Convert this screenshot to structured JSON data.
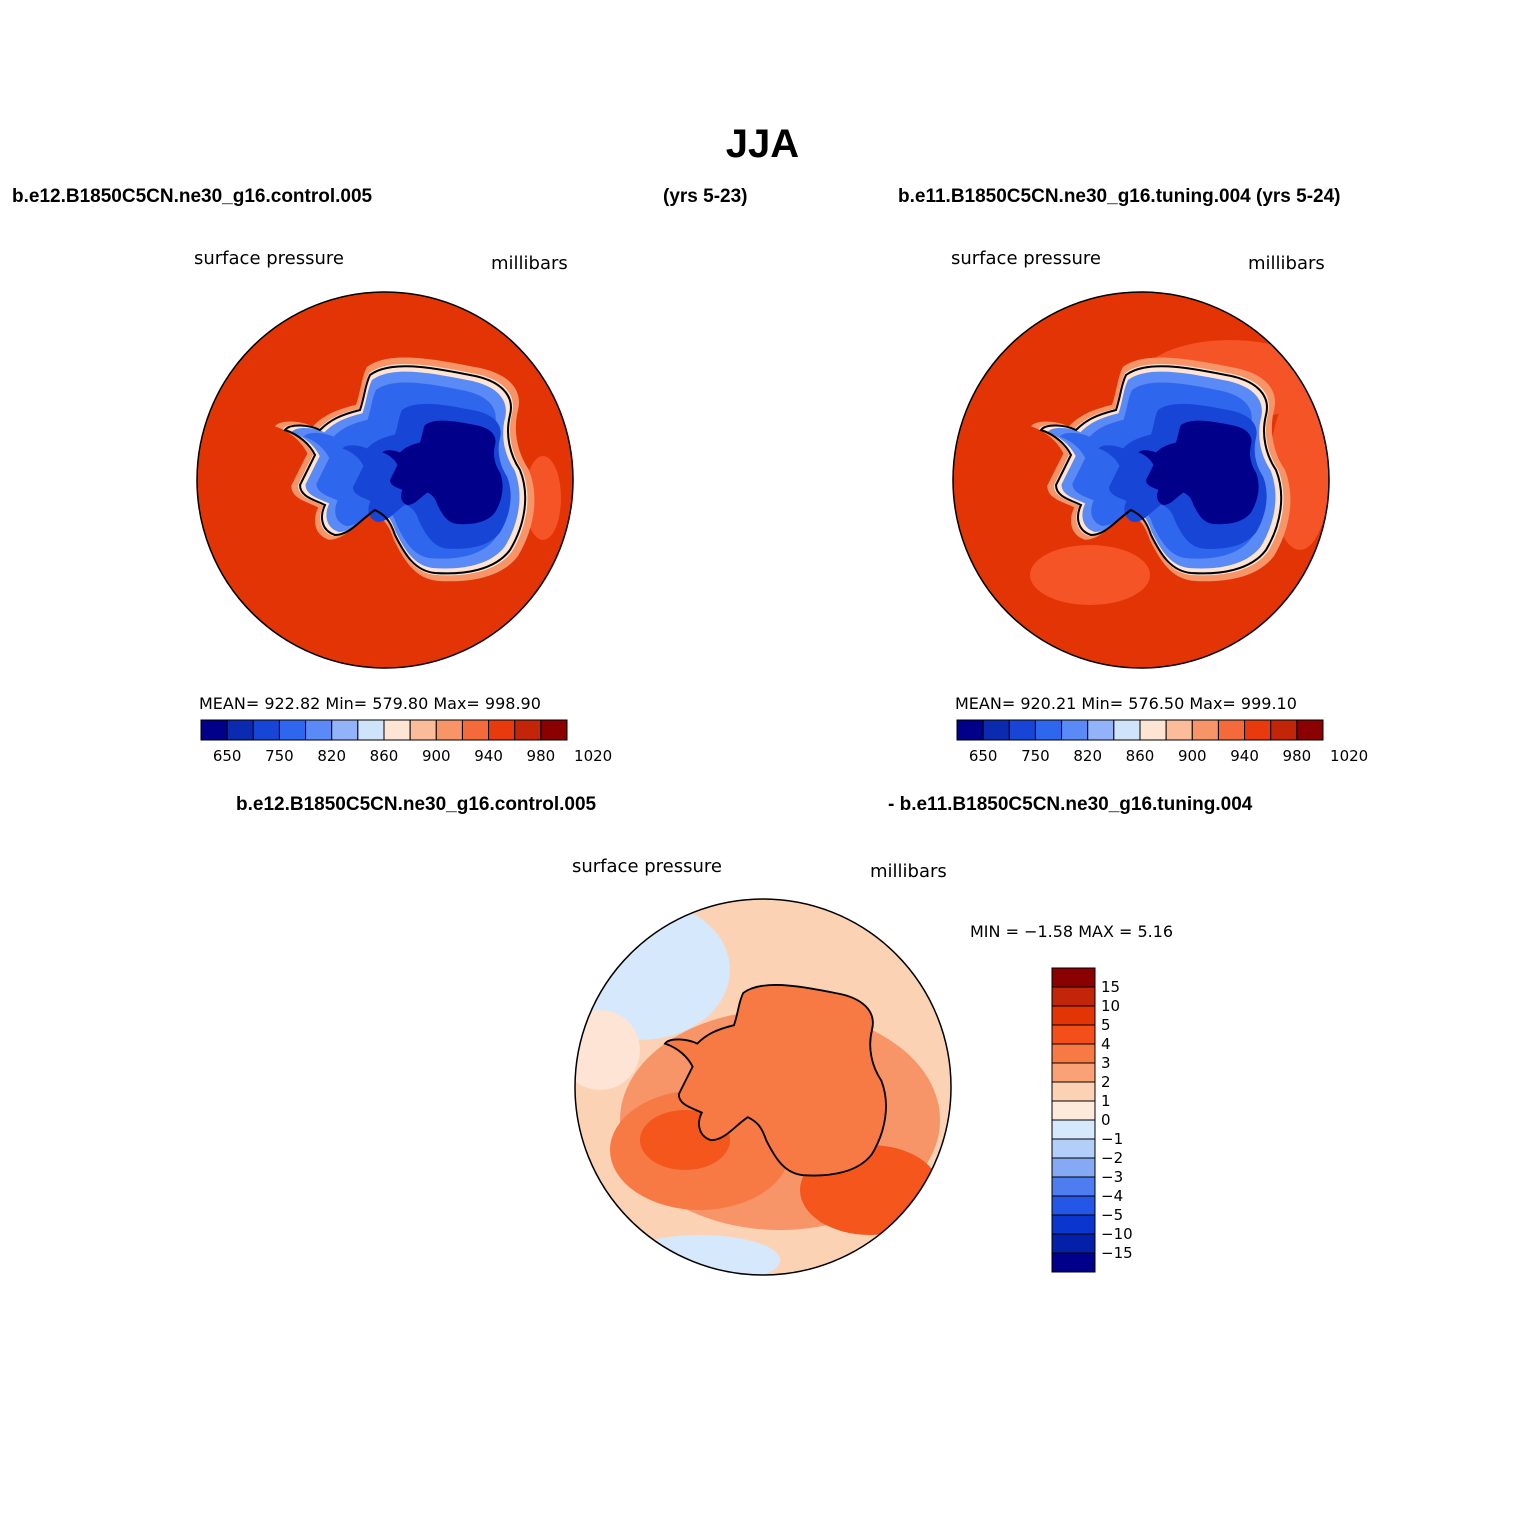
{
  "figure": {
    "title": "JJA",
    "case1": "b.e12.B1850C5CN.ne30_g16.control.005",
    "case1_years": "(yrs 5-23)",
    "case2": "b.e11.B1850C5CN.ne30_g16.tuning.004 (yrs 5-24)",
    "diff_case1": "b.e12.B1850C5CN.ne30_g16.control.005",
    "diff_case2": "- b.e11.B1850C5CN.ne30_g16.tuning.004"
  },
  "panels": [
    {
      "variable": "surface pressure",
      "units": "millibars",
      "stats": "MEAN= 922.82   Min= 579.80   Max= 998.90",
      "mean": 922.82,
      "min": 579.8,
      "max": 998.9
    },
    {
      "variable": "surface pressure",
      "units": "millibars",
      "stats": "MEAN= 920.21   Min= 576.50   Max= 999.10",
      "mean": 920.21,
      "min": 576.5,
      "max": 999.1
    }
  ],
  "diff_panel": {
    "variable": "surface pressure",
    "units": "millibars",
    "stats": "MIN =   −1.58  MAX =    5.16",
    "min": -1.58,
    "max": 5.16
  },
  "colorbar_abs": {
    "colors": [
      "#00008b",
      "#0a2ab0",
      "#1745d6",
      "#2f66ee",
      "#5a8af5",
      "#92b3fa",
      "#cfe3fb",
      "#fde4d4",
      "#fbbc9a",
      "#f79468",
      "#f56a3a",
      "#e83a0c",
      "#c22508",
      "#8b0000"
    ],
    "labels": [
      "650",
      "750",
      "820",
      "860",
      "900",
      "940",
      "980",
      "1020"
    ]
  },
  "colorbar_diff": {
    "colors": [
      "#8b0000",
      "#c22508",
      "#e23404",
      "#f44f1a",
      "#f77a44",
      "#faa276",
      "#fcd2b4",
      "#feeadb",
      "#d6e8fc",
      "#b4cefa",
      "#86a9f6",
      "#4d7df0",
      "#2456e8",
      "#0a36cf",
      "#0420a8",
      "#00008b"
    ],
    "labels": [
      "15",
      "10",
      "5",
      "4",
      "3",
      "2",
      "1",
      "0",
      "−1",
      "−2",
      "−3",
      "−4",
      "−5",
      "−10",
      "−15"
    ]
  },
  "map_colors": {
    "ocean_abs": "#e23404",
    "ocean_abs_light": "#f55426",
    "diff_base": "#fcd2b4",
    "diff_mid": "#f77a44",
    "diff_high": "#f4561c",
    "diff_low": "#d6e8fc"
  }
}
